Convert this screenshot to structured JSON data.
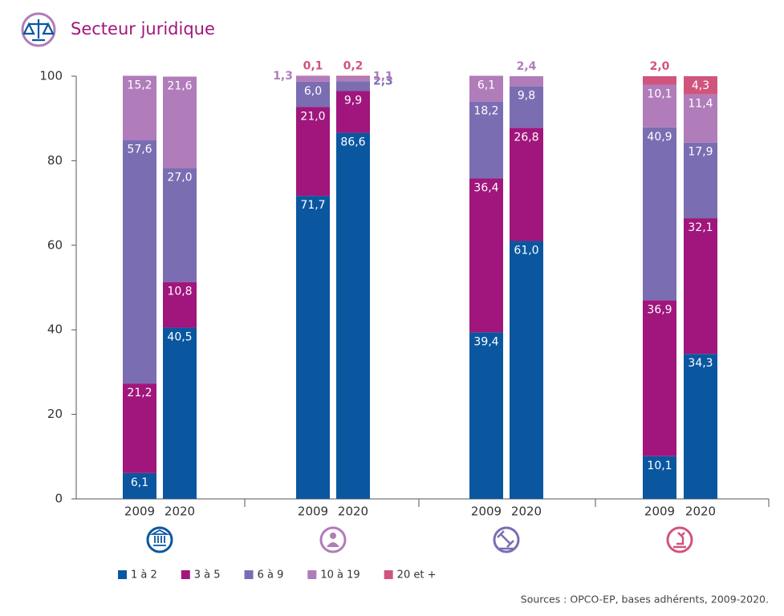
{
  "chart_data": {
    "type": "stacked_bar",
    "title": "Secteur juridique",
    "source": "Sources : OPCO-EP, bases adhérents, 2009-2020.",
    "categories": [
      "2009",
      "2020",
      "2009",
      "2020",
      "2009",
      "2020",
      "2009",
      "2020"
    ],
    "series": [
      {
        "name": "1 à 2",
        "color": "#0a57a0",
        "values": [
          6.1,
          40.5,
          71.7,
          86.6,
          39.4,
          61.0,
          10.1,
          34.3
        ],
        "value_labels": [
          "6,1",
          "40,5",
          "71,7",
          "86,6",
          "39,4",
          "61,0",
          "10,1",
          "34,3"
        ]
      },
      {
        "name": "3 à 5",
        "color": "#a0167c",
        "values": [
          21.2,
          10.8,
          21.0,
          9.9,
          36.4,
          26.8,
          36.9,
          32.1
        ],
        "value_labels": [
          "21,2",
          "10,8",
          "21,0",
          "9,9",
          "36,4",
          "26,8",
          "36,9",
          "32,1"
        ]
      },
      {
        "name": "6 à 9",
        "color": "#7b6db2",
        "values": [
          57.6,
          27.0,
          6.0,
          2.3,
          18.2,
          9.8,
          40.9,
          17.9
        ],
        "value_labels": [
          "57,6",
          "27,0",
          "6,0",
          "2,3",
          "18,2",
          "9,8",
          "40,9",
          "17,9"
        ]
      },
      {
        "name": "10 à 19",
        "color": "#b07cba",
        "values": [
          15.2,
          21.6,
          1.3,
          1.1,
          6.1,
          2.4,
          10.1,
          11.4
        ],
        "value_labels": [
          "15,2",
          "21,6",
          "1,3",
          "1,1",
          "6,1",
          "2,4",
          "10,1",
          "11,4"
        ]
      },
      {
        "name": "20 et +",
        "color": "#d0557c",
        "values": [
          null,
          null,
          0.1,
          0.2,
          null,
          null,
          2.0,
          4.3
        ],
        "value_labels": [
          null,
          null,
          "0,1",
          "0,2",
          null,
          null,
          "2,0",
          "4,3"
        ]
      }
    ],
    "ylim": [
      0,
      100
    ],
    "yticks": [
      0,
      20,
      40,
      60,
      80,
      100
    ]
  }
}
